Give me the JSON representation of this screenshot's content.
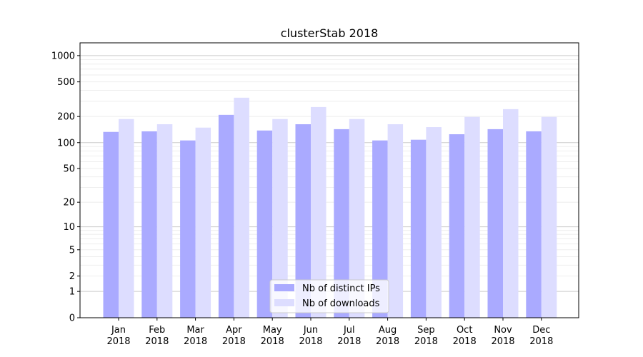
{
  "chart_data": {
    "type": "bar",
    "title": "clusterStab 2018",
    "xlabel": "",
    "ylabel": "",
    "yscale": "log(1+y)",
    "ylim": [
      0,
      1400
    ],
    "yticks": [
      0,
      1,
      2,
      5,
      10,
      20,
      50,
      100,
      200,
      500,
      1000
    ],
    "grid": true,
    "legend_position": "bottom-center",
    "categories": [
      "Jan\n2018",
      "Feb\n2018",
      "Mar\n2018",
      "Apr\n2018",
      "May\n2018",
      "Jun\n2018",
      "Jul\n2018",
      "Aug\n2018",
      "Sep\n2018",
      "Oct\n2018",
      "Nov\n2018",
      "Dec\n2018"
    ],
    "series": [
      {
        "name": "Nb of distinct IPs",
        "color": "#aaaaff",
        "values": [
          133,
          135,
          106,
          209,
          138,
          163,
          143,
          106,
          108,
          125,
          143,
          135
        ]
      },
      {
        "name": "Nb of downloads",
        "color": "#ddddff",
        "values": [
          187,
          163,
          149,
          329,
          187,
          257,
          187,
          163,
          151,
          198,
          243,
          198
        ]
      }
    ]
  }
}
